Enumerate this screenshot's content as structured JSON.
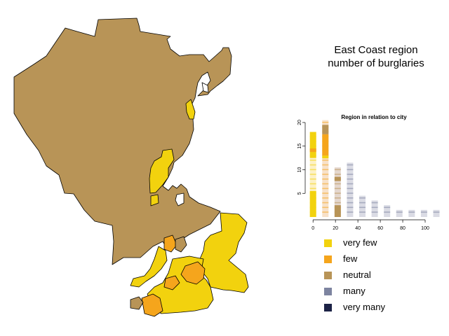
{
  "title": {
    "line1": "East Coast region",
    "line2": "number of burglaries"
  },
  "colors": {
    "very_few": "#f2d20e",
    "few": "#f5a51c",
    "neutral": "#b89457",
    "many": "#7d84a0",
    "very_many": "#1c2246",
    "outline": "#000000"
  },
  "legend": [
    {
      "label": "very few",
      "color": "#f2d20e"
    },
    {
      "label": "few",
      "color": "#f5a51c"
    },
    {
      "label": "neutral",
      "color": "#b89457"
    },
    {
      "label": "many",
      "color": "#7d84a0"
    },
    {
      "label": "very many",
      "color": "#1c2246"
    }
  ],
  "chart_data": {
    "type": "bar",
    "title": "Region in relation to city",
    "xlabel": "",
    "ylabel": "",
    "x_ticks": [
      0,
      20,
      40,
      60,
      80,
      100
    ],
    "y_ticks": [
      5,
      10,
      15,
      20
    ],
    "xlim": [
      -2,
      110
    ],
    "ylim": [
      0,
      20
    ],
    "grid": false,
    "bars": [
      {
        "x": 0,
        "height": 18
      },
      {
        "x": 11,
        "height": 20.5
      },
      {
        "x": 22,
        "height": 10.5
      },
      {
        "x": 33,
        "height": 11.5
      },
      {
        "x": 44,
        "height": 4.5
      },
      {
        "x": 55,
        "height": 3.5
      },
      {
        "x": 66,
        "height": 2.5
      },
      {
        "x": 77,
        "height": 1.5
      },
      {
        "x": 88,
        "height": 1.5
      },
      {
        "x": 99,
        "height": 1.5
      },
      {
        "x": 110,
        "height": 1.5
      }
    ]
  }
}
